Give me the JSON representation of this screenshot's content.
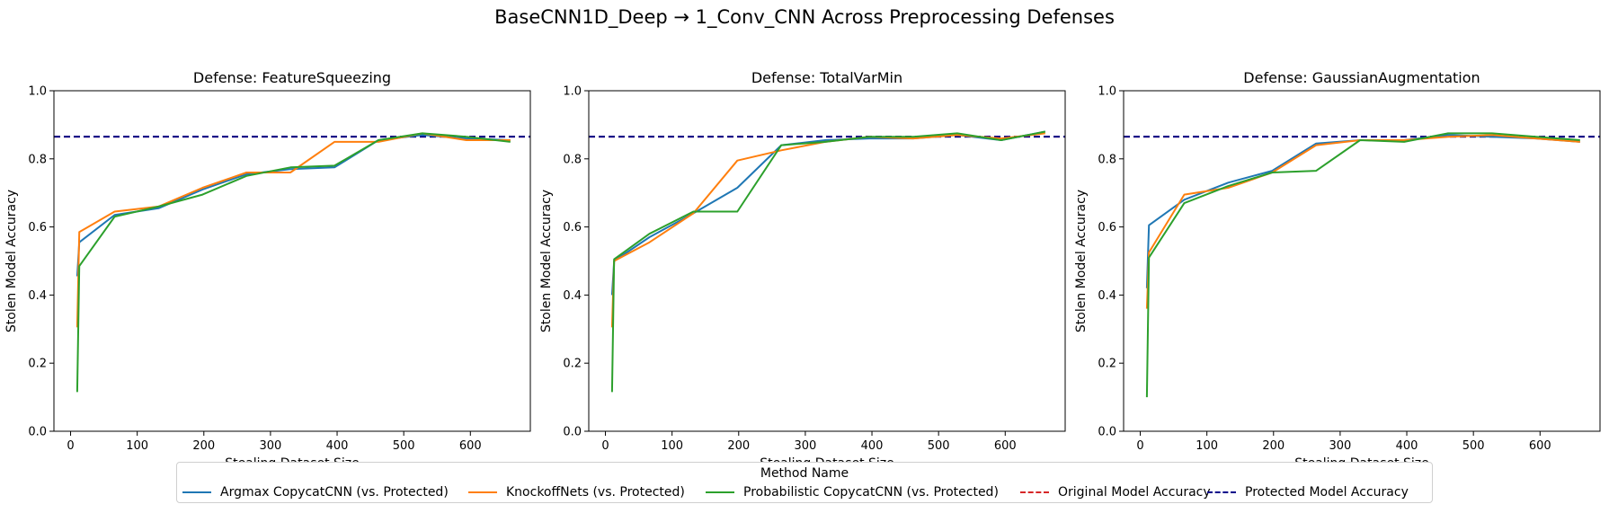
{
  "figure_title": "BaseCNN1D_Deep → 1_Conv_CNN Across Preprocessing Defenses",
  "legend": {
    "title": "Method Name",
    "items": [
      {
        "label": "Argmax CopycatCNN (vs. Protected)",
        "color": "#1f77b4",
        "style": "solid"
      },
      {
        "label": "KnockoffNets (vs. Protected)",
        "color": "#ff7f0e",
        "style": "solid"
      },
      {
        "label": "Probabilistic CopycatCNN (vs. Protected)",
        "color": "#2ca02c",
        "style": "solid"
      },
      {
        "label": "Original Model Accuracy",
        "color": "#d62728",
        "style": "dashed"
      },
      {
        "label": "Protected Model Accuracy",
        "color": "#00008b",
        "style": "dashed"
      }
    ]
  },
  "chart_data": [
    {
      "type": "line",
      "title": "Defense: FeatureSqueezing",
      "xlabel": "Stealing Dataset Size",
      "ylabel": "Stolen Model Accuracy",
      "xlim": [
        -25,
        690
      ],
      "ylim": [
        0,
        1.0
      ],
      "xticks": [
        0,
        100,
        200,
        300,
        400,
        500,
        600
      ],
      "yticks": [
        0.0,
        0.2,
        0.4,
        0.6,
        0.8,
        1.0
      ],
      "series": [
        {
          "name": "Argmax CopycatCNN (vs. Protected)",
          "color": "#1f77b4",
          "x": [
            10,
            13,
            66,
            132,
            198,
            264,
            330,
            396,
            462,
            528,
            594,
            660
          ],
          "y": [
            0.455,
            0.555,
            0.635,
            0.655,
            0.71,
            0.755,
            0.77,
            0.775,
            0.855,
            0.87,
            0.86,
            0.855
          ]
        },
        {
          "name": "KnockoffNets (vs. Protected)",
          "color": "#ff7f0e",
          "x": [
            10,
            13,
            66,
            132,
            198,
            264,
            330,
            396,
            462,
            528,
            594,
            660
          ],
          "y": [
            0.305,
            0.585,
            0.645,
            0.66,
            0.715,
            0.76,
            0.76,
            0.85,
            0.85,
            0.875,
            0.855,
            0.855
          ]
        },
        {
          "name": "Probabilistic CopycatCNN (vs. Protected)",
          "color": "#2ca02c",
          "x": [
            10,
            13,
            66,
            132,
            198,
            264,
            330,
            396,
            462,
            528,
            594,
            660
          ],
          "y": [
            0.115,
            0.485,
            0.63,
            0.66,
            0.695,
            0.75,
            0.775,
            0.78,
            0.855,
            0.875,
            0.865,
            0.85
          ]
        }
      ],
      "hlines": [
        {
          "name": "Original Model Accuracy",
          "color": "#d62728",
          "y": 0.865
        },
        {
          "name": "Protected Model Accuracy",
          "color": "#00008b",
          "y": 0.865
        }
      ]
    },
    {
      "type": "line",
      "title": "Defense: TotalVarMin",
      "xlabel": "Stealing Dataset Size",
      "ylabel": "Stolen Model Accuracy",
      "xlim": [
        -25,
        690
      ],
      "ylim": [
        0,
        1.0
      ],
      "xticks": [
        0,
        100,
        200,
        300,
        400,
        500,
        600
      ],
      "yticks": [
        0.0,
        0.2,
        0.4,
        0.6,
        0.8,
        1.0
      ],
      "series": [
        {
          "name": "Argmax CopycatCNN (vs. Protected)",
          "color": "#1f77b4",
          "x": [
            10,
            13,
            66,
            132,
            198,
            264,
            330,
            396,
            462,
            528,
            594,
            660
          ],
          "y": [
            0.4,
            0.5,
            0.57,
            0.64,
            0.715,
            0.84,
            0.855,
            0.86,
            0.86,
            0.87,
            0.855,
            0.88
          ]
        },
        {
          "name": "KnockoffNets (vs. Protected)",
          "color": "#ff7f0e",
          "x": [
            10,
            13,
            66,
            132,
            198,
            264,
            330,
            396,
            462,
            528,
            594,
            660
          ],
          "y": [
            0.305,
            0.5,
            0.555,
            0.64,
            0.795,
            0.825,
            0.85,
            0.865,
            0.86,
            0.87,
            0.86,
            0.875
          ]
        },
        {
          "name": "Probabilistic CopycatCNN (vs. Protected)",
          "color": "#2ca02c",
          "x": [
            10,
            13,
            66,
            132,
            198,
            264,
            330,
            396,
            462,
            528,
            594,
            660
          ],
          "y": [
            0.115,
            0.505,
            0.58,
            0.645,
            0.645,
            0.84,
            0.85,
            0.865,
            0.865,
            0.875,
            0.855,
            0.88
          ]
        }
      ],
      "hlines": [
        {
          "name": "Original Model Accuracy",
          "color": "#d62728",
          "y": 0.865
        },
        {
          "name": "Protected Model Accuracy",
          "color": "#00008b",
          "y": 0.865
        }
      ]
    },
    {
      "type": "line",
      "title": "Defense: GaussianAugmentation",
      "xlabel": "Stealing Dataset Size",
      "ylabel": "Stolen Model Accuracy",
      "xlim": [
        -25,
        690
      ],
      "ylim": [
        0,
        1.0
      ],
      "xticks": [
        0,
        100,
        200,
        300,
        400,
        500,
        600
      ],
      "yticks": [
        0.0,
        0.2,
        0.4,
        0.6,
        0.8,
        1.0
      ],
      "series": [
        {
          "name": "Argmax CopycatCNN (vs. Protected)",
          "color": "#1f77b4",
          "x": [
            10,
            13,
            66,
            132,
            198,
            264,
            330,
            396,
            462,
            528,
            594,
            660
          ],
          "y": [
            0.42,
            0.605,
            0.68,
            0.73,
            0.765,
            0.845,
            0.855,
            0.855,
            0.87,
            0.865,
            0.86,
            0.85
          ]
        },
        {
          "name": "KnockoffNets (vs. Protected)",
          "color": "#ff7f0e",
          "x": [
            10,
            13,
            66,
            132,
            198,
            264,
            330,
            396,
            462,
            528,
            594,
            660
          ],
          "y": [
            0.36,
            0.525,
            0.695,
            0.715,
            0.76,
            0.84,
            0.855,
            0.855,
            0.865,
            0.87,
            0.86,
            0.85
          ]
        },
        {
          "name": "Probabilistic CopycatCNN (vs. Protected)",
          "color": "#2ca02c",
          "x": [
            10,
            13,
            66,
            132,
            198,
            264,
            330,
            396,
            462,
            528,
            594,
            660
          ],
          "y": [
            0.1,
            0.51,
            0.67,
            0.72,
            0.76,
            0.765,
            0.855,
            0.85,
            0.875,
            0.875,
            0.865,
            0.855
          ]
        }
      ],
      "hlines": [
        {
          "name": "Original Model Accuracy",
          "color": "#d62728",
          "y": 0.865
        },
        {
          "name": "Protected Model Accuracy",
          "color": "#00008b",
          "y": 0.865
        }
      ]
    }
  ]
}
